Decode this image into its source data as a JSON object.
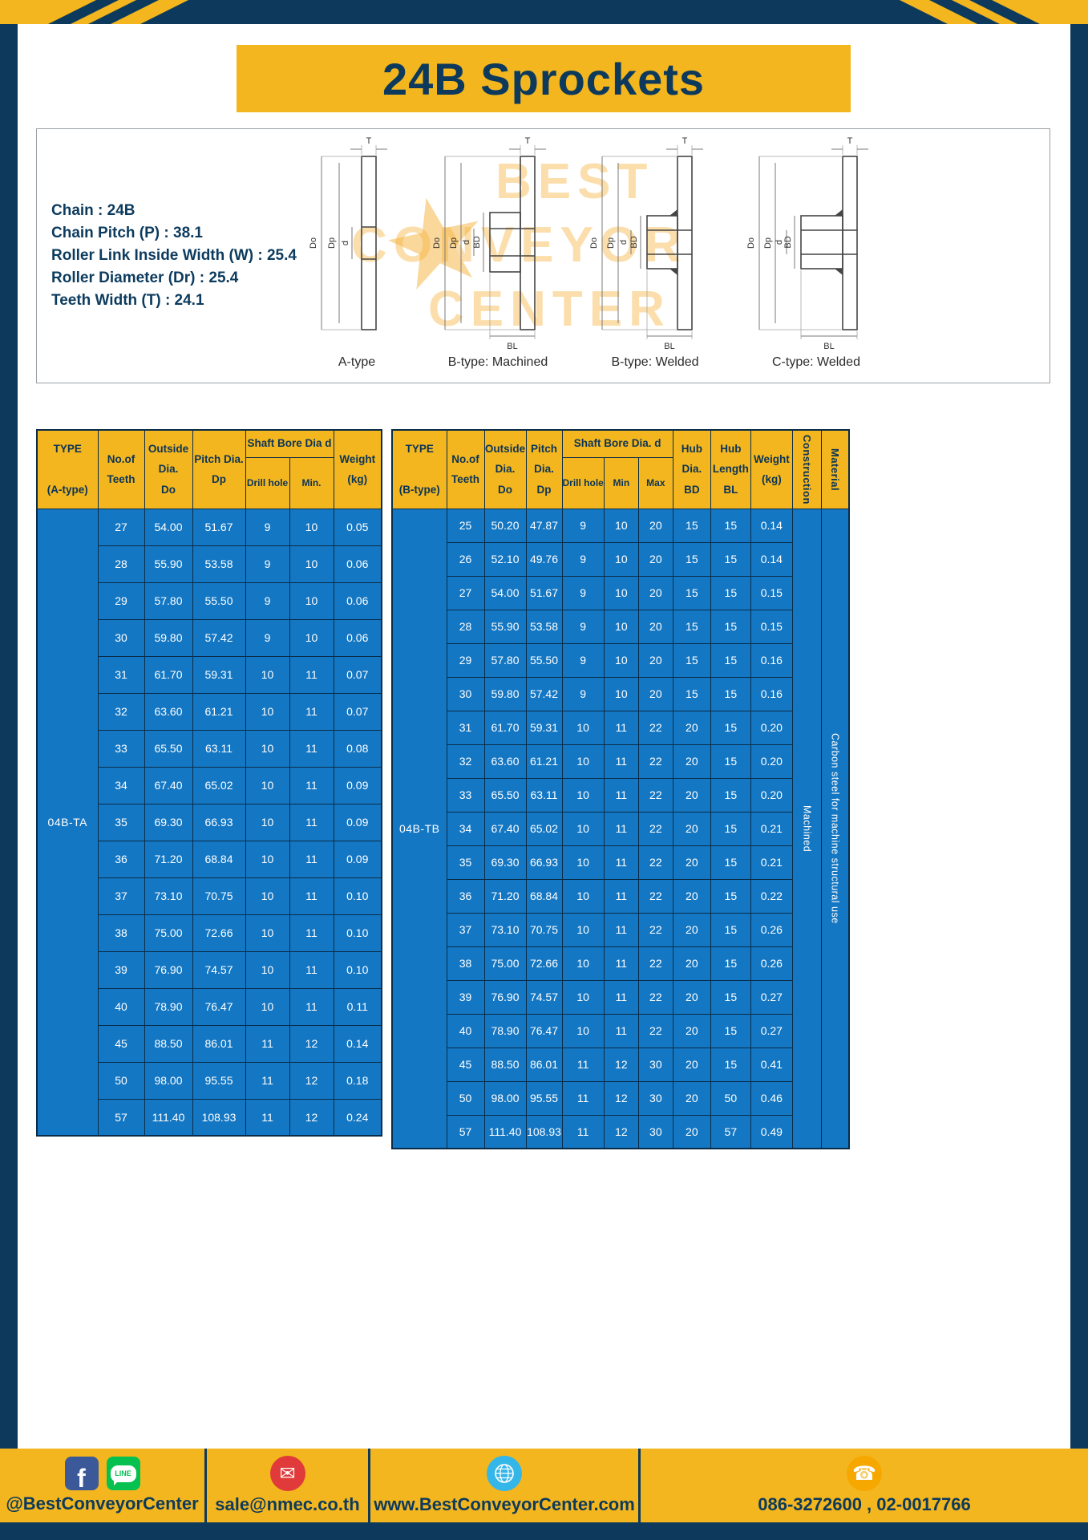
{
  "colors": {
    "frame_navy": "#0d3a5c",
    "accent_yellow": "#f3b61e",
    "table_blue": "#1477c3",
    "table_border": "#0a2c48",
    "watermark_orange": "#f5b038",
    "facebook_blue": "#3b5998",
    "line_green": "#06c150",
    "mail_red": "#e03a3a",
    "globe_blue": "#35b6e9",
    "phone_gold": "#f6a800"
  },
  "header": {
    "title": "24B Sprockets"
  },
  "specs": {
    "lines": [
      "Chain : 24B",
      "Chain Pitch (P) : 38.1",
      "Roller Link Inside Width (W) : 25.4",
      "Roller Diameter (Dr) : 25.4",
      "Teeth Width (T) : 24.1"
    ]
  },
  "diagram": {
    "captions": [
      "A-type",
      "B-type: Machined",
      "B-type: Welded",
      "C-type: Welded"
    ],
    "dims": {
      "T": "T",
      "Do": "Do",
      "Dp": "Dp",
      "d": "d",
      "BD": "BD",
      "BL": "BL"
    },
    "watermark": [
      "BEST",
      "CONVEYOR",
      "CENTER"
    ]
  },
  "tableA": {
    "h": {
      "type": "TYPE\n\n(A-type)",
      "teeth": "No.of\nTeeth",
      "outside": "Outside\nDia.\nDo",
      "pitch": "Pitch Dia.\nDp",
      "bore_group": "Shaft Bore Dia d",
      "drill": "Drill hole",
      "min": "Min.",
      "weight": "Weight\n(kg)"
    },
    "type_value": "04B-TA",
    "rows": [
      [
        "27",
        "54.00",
        "51.67",
        "9",
        "10",
        "0.05"
      ],
      [
        "28",
        "55.90",
        "53.58",
        "9",
        "10",
        "0.06"
      ],
      [
        "29",
        "57.80",
        "55.50",
        "9",
        "10",
        "0.06"
      ],
      [
        "30",
        "59.80",
        "57.42",
        "9",
        "10",
        "0.06"
      ],
      [
        "31",
        "61.70",
        "59.31",
        "10",
        "11",
        "0.07"
      ],
      [
        "32",
        "63.60",
        "61.21",
        "10",
        "11",
        "0.07"
      ],
      [
        "33",
        "65.50",
        "63.11",
        "10",
        "11",
        "0.08"
      ],
      [
        "34",
        "67.40",
        "65.02",
        "10",
        "11",
        "0.09"
      ],
      [
        "35",
        "69.30",
        "66.93",
        "10",
        "11",
        "0.09"
      ],
      [
        "36",
        "71.20",
        "68.84",
        "10",
        "11",
        "0.09"
      ],
      [
        "37",
        "73.10",
        "70.75",
        "10",
        "11",
        "0.10"
      ],
      [
        "38",
        "75.00",
        "72.66",
        "10",
        "11",
        "0.10"
      ],
      [
        "39",
        "76.90",
        "74.57",
        "10",
        "11",
        "0.10"
      ],
      [
        "40",
        "78.90",
        "76.47",
        "10",
        "11",
        "0.11"
      ],
      [
        "45",
        "88.50",
        "86.01",
        "11",
        "12",
        "0.14"
      ],
      [
        "50",
        "98.00",
        "95.55",
        "11",
        "12",
        "0.18"
      ],
      [
        "57",
        "111.40",
        "108.93",
        "11",
        "12",
        "0.24"
      ]
    ]
  },
  "tableB": {
    "h": {
      "type": "TYPE\n\n(B-type)",
      "teeth": "No.of\nTeeth",
      "outside": "Outside\nDia.\nDo",
      "pitch": "Pitch\nDia.\nDp",
      "bore_group": "Shaft Bore Dia. d",
      "drill": "Drill hole",
      "min": "Min",
      "max": "Max",
      "hub_dia": "Hub\nDia.\nBD",
      "hub_len": "Hub\nLength\nBL",
      "weight": "Weight\n(kg)",
      "construction": "Construction",
      "material": "Material"
    },
    "type_value": "04B-TB",
    "construction_value": "Machined",
    "material_value": "Carbon steel for machine structural use",
    "rows": [
      [
        "25",
        "50.20",
        "47.87",
        "9",
        "10",
        "20",
        "15",
        "15",
        "0.14"
      ],
      [
        "26",
        "52.10",
        "49.76",
        "9",
        "10",
        "20",
        "15",
        "15",
        "0.14"
      ],
      [
        "27",
        "54.00",
        "51.67",
        "9",
        "10",
        "20",
        "15",
        "15",
        "0.15"
      ],
      [
        "28",
        "55.90",
        "53.58",
        "9",
        "10",
        "20",
        "15",
        "15",
        "0.15"
      ],
      [
        "29",
        "57.80",
        "55.50",
        "9",
        "10",
        "20",
        "15",
        "15",
        "0.16"
      ],
      [
        "30",
        "59.80",
        "57.42",
        "9",
        "10",
        "20",
        "15",
        "15",
        "0.16"
      ],
      [
        "31",
        "61.70",
        "59.31",
        "10",
        "11",
        "22",
        "20",
        "15",
        "0.20"
      ],
      [
        "32",
        "63.60",
        "61.21",
        "10",
        "11",
        "22",
        "20",
        "15",
        "0.20"
      ],
      [
        "33",
        "65.50",
        "63.11",
        "10",
        "11",
        "22",
        "20",
        "15",
        "0.20"
      ],
      [
        "34",
        "67.40",
        "65.02",
        "10",
        "11",
        "22",
        "20",
        "15",
        "0.21"
      ],
      [
        "35",
        "69.30",
        "66.93",
        "10",
        "11",
        "22",
        "20",
        "15",
        "0.21"
      ],
      [
        "36",
        "71.20",
        "68.84",
        "10",
        "11",
        "22",
        "20",
        "15",
        "0.22"
      ],
      [
        "37",
        "73.10",
        "70.75",
        "10",
        "11",
        "22",
        "20",
        "15",
        "0.26"
      ],
      [
        "38",
        "75.00",
        "72.66",
        "10",
        "11",
        "22",
        "20",
        "15",
        "0.26"
      ],
      [
        "39",
        "76.90",
        "74.57",
        "10",
        "11",
        "22",
        "20",
        "15",
        "0.27"
      ],
      [
        "40",
        "78.90",
        "76.47",
        "10",
        "11",
        "22",
        "20",
        "15",
        "0.27"
      ],
      [
        "45",
        "88.50",
        "86.01",
        "11",
        "12",
        "30",
        "20",
        "15",
        "0.41"
      ],
      [
        "50",
        "98.00",
        "95.55",
        "11",
        "12",
        "30",
        "20",
        "50",
        "0.46"
      ],
      [
        "57",
        "111.40",
        "108.93",
        "11",
        "12",
        "30",
        "20",
        "57",
        "0.49"
      ]
    ]
  },
  "footer": {
    "fb_glyph": "f",
    "line_glyph": "LINE",
    "mail_glyph": "✉",
    "phone_glyph": "☎",
    "items": [
      {
        "icons": [
          "facebook-icon",
          "line-icon"
        ],
        "label": "@BestConveyorCenter"
      },
      {
        "icons": [
          "mail-icon"
        ],
        "label": "sale@nmec.co.th"
      },
      {
        "icons": [
          "globe-icon"
        ],
        "label": "www.BestConveyorCenter.com"
      },
      {
        "icons": [
          "phone-icon"
        ],
        "label": "086-3272600 , 02-0017766"
      }
    ]
  }
}
